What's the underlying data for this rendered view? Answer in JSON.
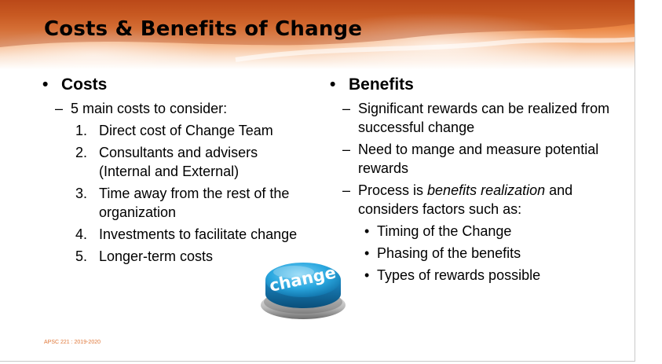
{
  "slide": {
    "title": "Costs & Benefits of Change",
    "footer": "APSC 221 : 2019-2020"
  },
  "costs": {
    "heading": "Costs",
    "intro": "5 main costs to consider:",
    "items": [
      {
        "num": "1.",
        "text": "Direct cost of Change Team"
      },
      {
        "num": "2.",
        "text": "Consultants and advisers (Internal and External)"
      },
      {
        "num": "3.",
        "text": "Time away from the rest of the organization"
      },
      {
        "num": "4.",
        "text": "Investments to facilitate change"
      },
      {
        "num": "5.",
        "text": "Longer-term costs"
      }
    ]
  },
  "benefits": {
    "heading": "Benefits",
    "points": [
      "Significant rewards can be realized from successful change",
      "Need to mange and measure potential rewards"
    ],
    "process_prefix": "Process is ",
    "process_emphasis": "benefits realization",
    "process_suffix": " and considers factors such as:",
    "factors": [
      "Timing of the Change",
      "Phasing of the benefits",
      "Types of rewards possible"
    ]
  },
  "image": {
    "button_label": "change"
  },
  "colors": {
    "banner_dark": "#c4501c",
    "banner_light": "#f6b585",
    "button_blue": "#2aa7df",
    "footer_text": "#e0783a"
  }
}
